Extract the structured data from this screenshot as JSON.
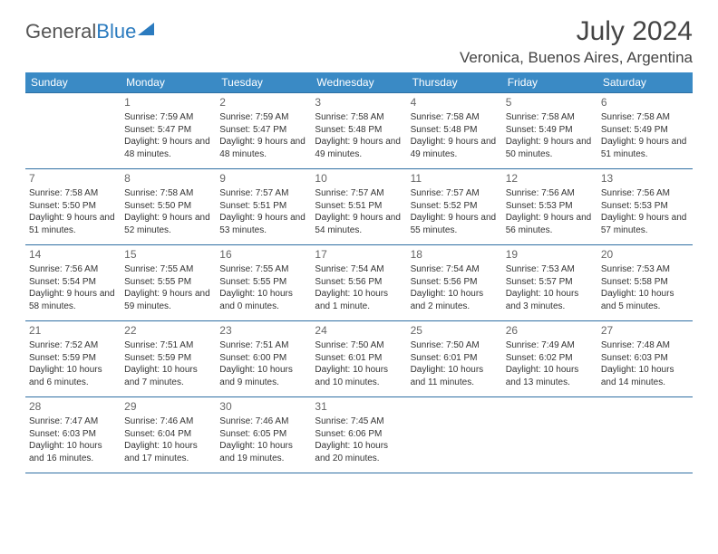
{
  "brand": {
    "word1": "General",
    "word2": "Blue"
  },
  "header": {
    "month": "July 2024",
    "location": "Veronica, Buenos Aires, Argentina"
  },
  "calendar": {
    "type": "table",
    "header_bg": "#3a8ac5",
    "header_fg": "#ffffff",
    "border_color": "#2f6fa3",
    "background_color": "#ffffff",
    "text_color": "#333333",
    "daynum_color": "#666666",
    "font_family": "Arial",
    "header_fontsize": 12,
    "daynum_fontsize": 12,
    "body_fontsize": 10,
    "columns": [
      "Sunday",
      "Monday",
      "Tuesday",
      "Wednesday",
      "Thursday",
      "Friday",
      "Saturday"
    ],
    "start_weekday": 1,
    "days": [
      {
        "n": 1,
        "sunrise": "7:59 AM",
        "sunset": "5:47 PM",
        "daylight": "9 hours and 48 minutes."
      },
      {
        "n": 2,
        "sunrise": "7:59 AM",
        "sunset": "5:47 PM",
        "daylight": "9 hours and 48 minutes."
      },
      {
        "n": 3,
        "sunrise": "7:58 AM",
        "sunset": "5:48 PM",
        "daylight": "9 hours and 49 minutes."
      },
      {
        "n": 4,
        "sunrise": "7:58 AM",
        "sunset": "5:48 PM",
        "daylight": "9 hours and 49 minutes."
      },
      {
        "n": 5,
        "sunrise": "7:58 AM",
        "sunset": "5:49 PM",
        "daylight": "9 hours and 50 minutes."
      },
      {
        "n": 6,
        "sunrise": "7:58 AM",
        "sunset": "5:49 PM",
        "daylight": "9 hours and 51 minutes."
      },
      {
        "n": 7,
        "sunrise": "7:58 AM",
        "sunset": "5:50 PM",
        "daylight": "9 hours and 51 minutes."
      },
      {
        "n": 8,
        "sunrise": "7:58 AM",
        "sunset": "5:50 PM",
        "daylight": "9 hours and 52 minutes."
      },
      {
        "n": 9,
        "sunrise": "7:57 AM",
        "sunset": "5:51 PM",
        "daylight": "9 hours and 53 minutes."
      },
      {
        "n": 10,
        "sunrise": "7:57 AM",
        "sunset": "5:51 PM",
        "daylight": "9 hours and 54 minutes."
      },
      {
        "n": 11,
        "sunrise": "7:57 AM",
        "sunset": "5:52 PM",
        "daylight": "9 hours and 55 minutes."
      },
      {
        "n": 12,
        "sunrise": "7:56 AM",
        "sunset": "5:53 PM",
        "daylight": "9 hours and 56 minutes."
      },
      {
        "n": 13,
        "sunrise": "7:56 AM",
        "sunset": "5:53 PM",
        "daylight": "9 hours and 57 minutes."
      },
      {
        "n": 14,
        "sunrise": "7:56 AM",
        "sunset": "5:54 PM",
        "daylight": "9 hours and 58 minutes."
      },
      {
        "n": 15,
        "sunrise": "7:55 AM",
        "sunset": "5:55 PM",
        "daylight": "9 hours and 59 minutes."
      },
      {
        "n": 16,
        "sunrise": "7:55 AM",
        "sunset": "5:55 PM",
        "daylight": "10 hours and 0 minutes."
      },
      {
        "n": 17,
        "sunrise": "7:54 AM",
        "sunset": "5:56 PM",
        "daylight": "10 hours and 1 minute."
      },
      {
        "n": 18,
        "sunrise": "7:54 AM",
        "sunset": "5:56 PM",
        "daylight": "10 hours and 2 minutes."
      },
      {
        "n": 19,
        "sunrise": "7:53 AM",
        "sunset": "5:57 PM",
        "daylight": "10 hours and 3 minutes."
      },
      {
        "n": 20,
        "sunrise": "7:53 AM",
        "sunset": "5:58 PM",
        "daylight": "10 hours and 5 minutes."
      },
      {
        "n": 21,
        "sunrise": "7:52 AM",
        "sunset": "5:59 PM",
        "daylight": "10 hours and 6 minutes."
      },
      {
        "n": 22,
        "sunrise": "7:51 AM",
        "sunset": "5:59 PM",
        "daylight": "10 hours and 7 minutes."
      },
      {
        "n": 23,
        "sunrise": "7:51 AM",
        "sunset": "6:00 PM",
        "daylight": "10 hours and 9 minutes."
      },
      {
        "n": 24,
        "sunrise": "7:50 AM",
        "sunset": "6:01 PM",
        "daylight": "10 hours and 10 minutes."
      },
      {
        "n": 25,
        "sunrise": "7:50 AM",
        "sunset": "6:01 PM",
        "daylight": "10 hours and 11 minutes."
      },
      {
        "n": 26,
        "sunrise": "7:49 AM",
        "sunset": "6:02 PM",
        "daylight": "10 hours and 13 minutes."
      },
      {
        "n": 27,
        "sunrise": "7:48 AM",
        "sunset": "6:03 PM",
        "daylight": "10 hours and 14 minutes."
      },
      {
        "n": 28,
        "sunrise": "7:47 AM",
        "sunset": "6:03 PM",
        "daylight": "10 hours and 16 minutes."
      },
      {
        "n": 29,
        "sunrise": "7:46 AM",
        "sunset": "6:04 PM",
        "daylight": "10 hours and 17 minutes."
      },
      {
        "n": 30,
        "sunrise": "7:46 AM",
        "sunset": "6:05 PM",
        "daylight": "10 hours and 19 minutes."
      },
      {
        "n": 31,
        "sunrise": "7:45 AM",
        "sunset": "6:06 PM",
        "daylight": "10 hours and 20 minutes."
      }
    ],
    "labels": {
      "sunrise_prefix": "Sunrise: ",
      "sunset_prefix": "Sunset: ",
      "daylight_prefix": "Daylight: "
    }
  }
}
